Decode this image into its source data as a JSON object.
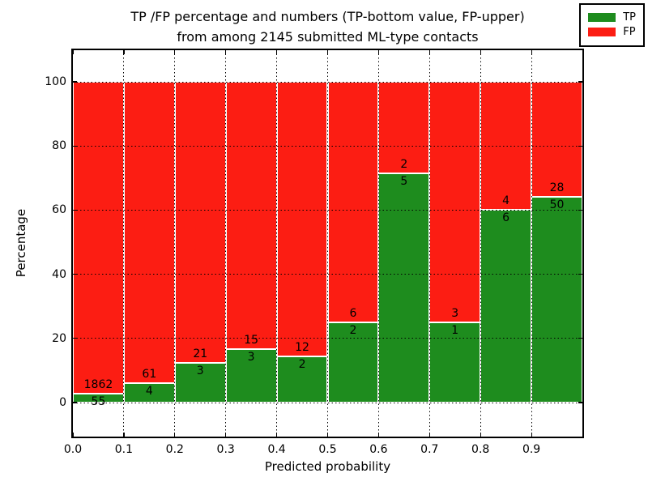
{
  "title": {
    "line1": "TP /FP percentage and numbers (TP-bottom value, FP-upper)",
    "line2": "from among 2145 submitted ML-type contacts"
  },
  "axes": {
    "xlabel": "Predicted probability",
    "ylabel": "Percentage"
  },
  "legend": {
    "items": [
      {
        "label": "TP",
        "color": "#1e8c1e"
      },
      {
        "label": "FP",
        "color": "#fc1d13"
      }
    ]
  },
  "chart_data": {
    "type": "bar",
    "stacked": true,
    "normalized": "each bin scaled to 100%",
    "title": "TP /FP percentage and numbers (TP-bottom value, FP-upper) from among 2145 submitted ML-type contacts",
    "xlabel": "Predicted probability",
    "ylabel": "Percentage",
    "total_contacts": 2145,
    "grid": "dotted",
    "legend_position": "upper right",
    "x_tick_labels": [
      "0.0",
      "0.1",
      "0.2",
      "0.3",
      "0.4",
      "0.5",
      "0.6",
      "0.7",
      "0.8",
      "0.9"
    ],
    "y_ticks": [
      0,
      20,
      40,
      60,
      80,
      100
    ],
    "categories": [
      "0.0-0.1",
      "0.1-0.2",
      "0.2-0.3",
      "0.3-0.4",
      "0.4-0.5",
      "0.5-0.6",
      "0.6-0.7",
      "0.7-0.8",
      "0.8-0.9",
      "0.9-1.0"
    ],
    "series": [
      {
        "name": "TP",
        "color": "#1e8c1e",
        "counts": [
          55,
          4,
          3,
          3,
          2,
          2,
          5,
          1,
          6,
          50
        ]
      },
      {
        "name": "FP",
        "color": "#fc1d13",
        "counts": [
          1862,
          61,
          21,
          15,
          12,
          6,
          2,
          3,
          4,
          28
        ]
      }
    ],
    "tp_percent": [
      2.87,
      6.15,
      12.5,
      16.67,
      14.29,
      25.0,
      71.43,
      25.0,
      60.0,
      64.1
    ],
    "ylim_display": [
      -10.6,
      109.8
    ]
  }
}
